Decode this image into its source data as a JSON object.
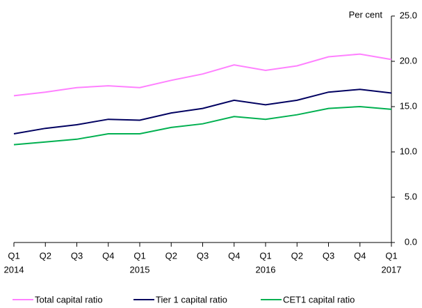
{
  "chart_data": {
    "type": "line",
    "y_axis_label": "Per cent",
    "categories": [
      [
        "Q1",
        "2014"
      ],
      [
        "Q2"
      ],
      [
        "Q3"
      ],
      [
        "Q4"
      ],
      [
        "Q1",
        "2015"
      ],
      [
        "Q2"
      ],
      [
        "Q3"
      ],
      [
        "Q4"
      ],
      [
        "Q1",
        "2016"
      ],
      [
        "Q2"
      ],
      [
        "Q3"
      ],
      [
        "Q4"
      ],
      [
        "Q1",
        "2017"
      ]
    ],
    "series": [
      {
        "name": "Total capital ratio",
        "color": "#ff80ff",
        "values": [
          16.2,
          16.6,
          17.1,
          17.3,
          17.1,
          17.9,
          18.6,
          19.6,
          19.0,
          19.5,
          20.5,
          20.8,
          20.2
        ]
      },
      {
        "name": "Tier 1 capital ratio",
        "color": "#000060",
        "values": [
          12.0,
          12.6,
          13.0,
          13.6,
          13.5,
          14.3,
          14.8,
          15.7,
          15.2,
          15.7,
          16.6,
          16.9,
          16.5
        ]
      },
      {
        "name": "CET1 capital ratio",
        "color": "#00b050",
        "values": [
          10.8,
          11.1,
          11.4,
          12.0,
          12.0,
          12.7,
          13.1,
          13.9,
          13.6,
          14.1,
          14.8,
          15.0,
          14.7
        ]
      }
    ],
    "ylim": [
      0,
      25
    ],
    "yticks": [
      {
        "value": 0,
        "label": "0.0"
      },
      {
        "value": 5,
        "label": "5.0"
      },
      {
        "value": 10,
        "label": "10.0"
      },
      {
        "value": 15,
        "label": "15.0"
      },
      {
        "value": 20,
        "label": "20.0"
      },
      {
        "value": 25,
        "label": "25.0"
      }
    ],
    "axis_side": "right",
    "grid": false,
    "legend": "bottom"
  }
}
